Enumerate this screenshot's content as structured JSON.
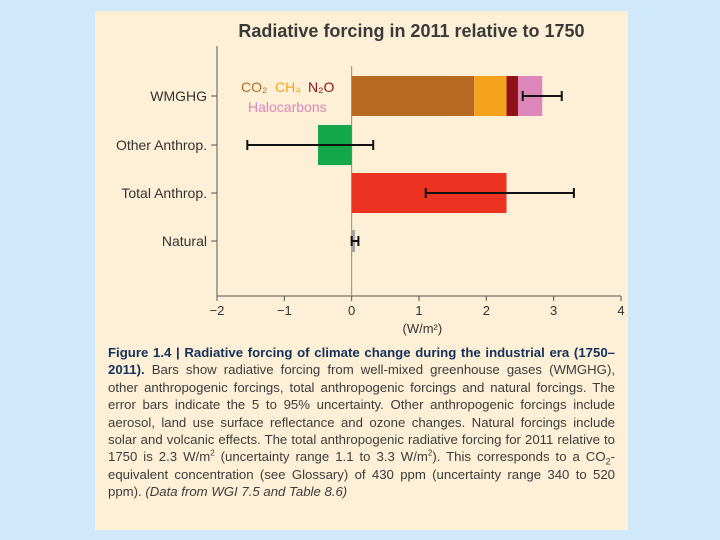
{
  "chart_data": {
    "type": "bar",
    "orientation": "horizontal",
    "title": "Radiative forcing in 2011 relative to 1750",
    "xlabel": "(W/m²)",
    "xlim": [
      -2,
      4
    ],
    "xticks": [
      "−2",
      "−1",
      "0",
      "1",
      "2",
      "3",
      "4"
    ],
    "categories": [
      "WMGHG",
      "Other Anthrop.",
      "Total Anthrop.",
      "Natural"
    ],
    "stacked_components": {
      "category": "WMGHG",
      "segments": [
        {
          "name": "CO₂",
          "value": 1.82,
          "color": "#b86a22"
        },
        {
          "name": "CH₄",
          "value": 0.48,
          "color": "#f5a31f"
        },
        {
          "name": "N₂O",
          "value": 0.17,
          "color": "#8e1218"
        },
        {
          "name": "Halocarbons",
          "value": 0.36,
          "color": "#dd86bc"
        }
      ]
    },
    "bars": [
      {
        "category": "Other Anthrop.",
        "value": -0.5,
        "color": "#14a84b"
      },
      {
        "category": "Total Anthrop.",
        "value": 2.3,
        "color": "#ec3321"
      },
      {
        "category": "Natural",
        "value": 0.05,
        "color": "#a5a5a5"
      }
    ],
    "error_bars": [
      {
        "category": "WMGHG",
        "low": 2.54,
        "high": 3.12
      },
      {
        "category": "Other Anthrop.",
        "low": -1.55,
        "high": 0.32
      },
      {
        "category": "Total Anthrop.",
        "low": 1.1,
        "high": 3.3
      },
      {
        "category": "Natural",
        "low": 0.0,
        "high": 0.1
      }
    ],
    "legend": [
      {
        "label": "CO₂",
        "color": "#b86a22"
      },
      {
        "label": "CH₄",
        "color": "#f5a31f"
      },
      {
        "label": "N₂O",
        "color": "#8e1218"
      },
      {
        "label": "Halocarbons",
        "color": "#dd86bc"
      }
    ]
  },
  "caption": {
    "figure_label": "Figure 1.4 | Radiative forcing of climate change during the industrial era (1750–2011).",
    "text_1": " Bars show radiative forcing from well-mixed greenhouse gases (WMGHG), other anthropogenic forcings, total anthropogenic forcings and natural forcings. The error bars indicate the 5 to 95% uncertainty. Other anthropogenic forcings include aerosol, land use surface reflectance and ozone changes. Natural forcings include solar and volcanic effects. The total anthropogenic radiative forcing for 2011 relative to 1750 is 2.3 W/m",
    "sup_1": "2",
    "text_2": " (uncertainty range 1.1 to 3.3 W/m",
    "sup_2": "2",
    "text_3": "). This corresponds to a CO",
    "sub_1": "2",
    "text_4": "-equivalent concentration (see Glossary) of 430 ppm (uncertainty range 340 to 520 ppm). ",
    "source": "(Data from WGI 7.5 and Table 8.6)"
  }
}
